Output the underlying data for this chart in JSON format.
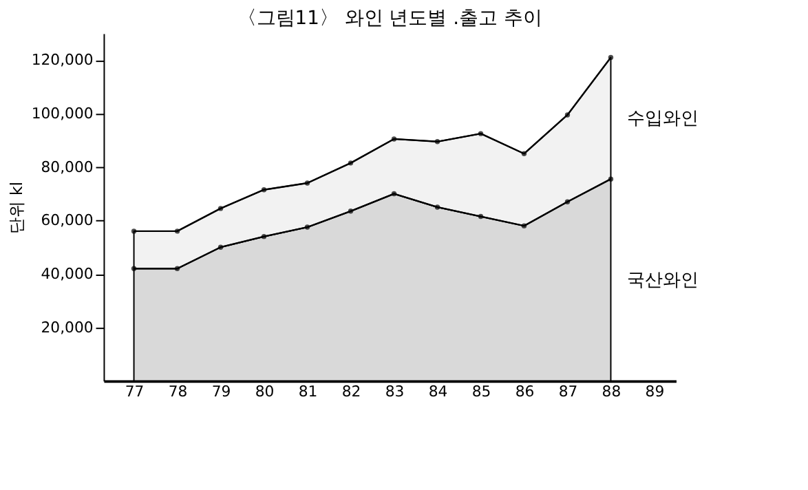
{
  "chart_data": {
    "type": "area",
    "title": "〈그림11〉 와인 년도별 .출고 추이",
    "ylabel": "단위 kl",
    "x": [
      77,
      78,
      79,
      80,
      81,
      82,
      83,
      84,
      85,
      86,
      87,
      88
    ],
    "stacked": true,
    "series": [
      {
        "name": "국산와인",
        "color": "#d9d9d9",
        "values": [
          42000,
          42000,
          50000,
          54000,
          57500,
          63500,
          70000,
          65000,
          61500,
          58000,
          67000,
          75500
        ]
      },
      {
        "name": "수입와인",
        "color": "#f2f2f2",
        "values": [
          14000,
          14000,
          14500,
          17500,
          16500,
          18000,
          20500,
          24500,
          31000,
          27000,
          32500,
          45500
        ]
      }
    ],
    "xlim": [
      76.3,
      89.5
    ],
    "xticks": [
      77,
      78,
      79,
      80,
      81,
      82,
      83,
      84,
      85,
      86,
      87,
      88,
      89
    ],
    "ylim": [
      0,
      130000
    ],
    "yticks": [
      {
        "value": 20000,
        "label": "20,000"
      },
      {
        "value": 40000,
        "label": "40,000"
      },
      {
        "value": 60000,
        "label": "60,000"
      },
      {
        "value": 80000,
        "label": "80,000"
      },
      {
        "value": 100000,
        "label": "100,000"
      },
      {
        "value": 120000,
        "label": "120,000"
      }
    ],
    "grid": false,
    "marker": "circle",
    "legend": false
  }
}
